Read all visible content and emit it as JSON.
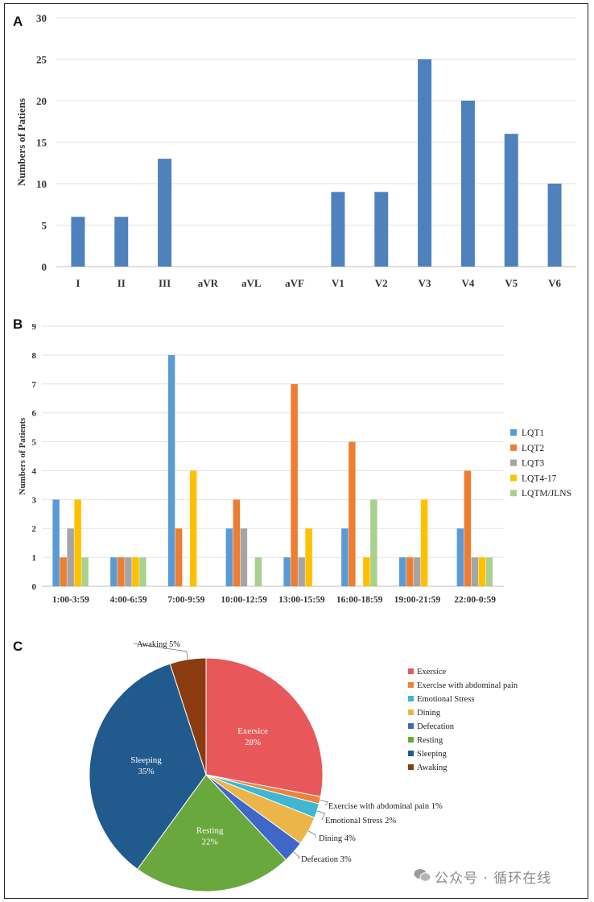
{
  "chart_data": [
    {
      "panel": "A",
      "type": "bar",
      "ylabel": "Numbers of Patiens",
      "ylim": [
        0,
        30
      ],
      "yticks": [
        0,
        5,
        10,
        15,
        20,
        25,
        30
      ],
      "categories": [
        "I",
        "II",
        "III",
        "aVR",
        "aVL",
        "aVF",
        "V1",
        "V2",
        "V3",
        "V4",
        "V5",
        "V6"
      ],
      "values": [
        6,
        6,
        13,
        0,
        0,
        0,
        9,
        9,
        25,
        20,
        16,
        10
      ],
      "color": "#4f81bd",
      "grid": true
    },
    {
      "panel": "B",
      "type": "bar",
      "ylabel": "Numbers of Patients",
      "ylim": [
        0,
        9
      ],
      "yticks": [
        0,
        1,
        2,
        3,
        4,
        5,
        6,
        7,
        8,
        9
      ],
      "categories": [
        "1:00-3:59",
        "4:00-6:59",
        "7:00-9:59",
        "10:00-12:59",
        "13:00-15:59",
        "16:00-18:59",
        "19:00-21:59",
        "22:00-0:59"
      ],
      "series": [
        {
          "name": "LQT1",
          "color": "#5b9bd5",
          "values": [
            3,
            1,
            8,
            2,
            1,
            2,
            1,
            2
          ]
        },
        {
          "name": "LQT2",
          "color": "#ed7d31",
          "values": [
            1,
            1,
            2,
            3,
            7,
            5,
            1,
            4
          ]
        },
        {
          "name": "LQT3",
          "color": "#a5a5a5",
          "values": [
            2,
            1,
            0,
            2,
            1,
            0,
            1,
            1
          ]
        },
        {
          "name": "LQT4-17",
          "color": "#ffc000",
          "values": [
            3,
            1,
            4,
            0,
            2,
            1,
            3,
            1
          ]
        },
        {
          "name": "LQTM/JLNS",
          "color": "#a9d18e",
          "values": [
            1,
            1,
            0,
            1,
            0,
            3,
            0,
            1
          ]
        }
      ],
      "legend": "right",
      "grid": true
    },
    {
      "panel": "C",
      "type": "pie",
      "slices": [
        {
          "name": "Exersice",
          "value": 28,
          "color": "#e8585b",
          "label": "28%"
        },
        {
          "name": "Exercise with abdominal pain",
          "value": 1,
          "color": "#f08237",
          "label": "1%"
        },
        {
          "name": "Emotional Stress",
          "value": 2,
          "color": "#3fb7d3",
          "label": "2%"
        },
        {
          "name": "Dining",
          "value": 4,
          "color": "#ebb54a",
          "label": "4%"
        },
        {
          "name": "Defecation",
          "value": 3,
          "color": "#3e67c7",
          "label": "3%"
        },
        {
          "name": "Resting",
          "value": 22,
          "color": "#6aa73c",
          "label": "22%"
        },
        {
          "name": "Sleeping",
          "value": 35,
          "color": "#215a8c",
          "label": "35%"
        },
        {
          "name": "Awaking",
          "value": 5,
          "color": "#8a3c10",
          "label": "5%"
        }
      ],
      "legend": "right"
    }
  ],
  "watermark": "公众号 · 循环在线"
}
